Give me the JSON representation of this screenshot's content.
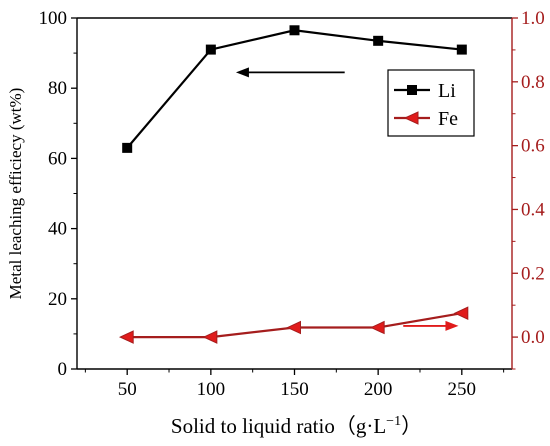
{
  "chart_data": {
    "type": "line",
    "x": [
      50,
      100,
      150,
      200,
      250
    ],
    "xlabel_main": "Solid to liquid ratio（g·L",
    "xlabel_sup": "−1",
    "xlabel_close": "）",
    "ylabel": "Metal leaching efficiecy (wt%)",
    "xlim": [
      20,
      280
    ],
    "xticks": [
      50,
      100,
      150,
      200,
      250
    ],
    "ylim": [
      0,
      100
    ],
    "yticks": [
      0,
      20,
      40,
      60,
      80,
      100
    ],
    "y2lim": [
      -0.1,
      1.0
    ],
    "y2ticks": [
      0.0,
      0.2,
      0.4,
      0.6,
      0.8,
      1.0
    ],
    "y2tick_labels": [
      "0.0",
      "0.2",
      "0.4",
      "0.6",
      "0.8",
      "1.0"
    ],
    "grid": false,
    "legend_position": "top-right",
    "series": [
      {
        "name": "Li",
        "axis": "left",
        "values": [
          63,
          91,
          96.5,
          93.5,
          91
        ],
        "color": "#000000",
        "marker": "square"
      },
      {
        "name": "Fe",
        "axis": "right",
        "values": [
          0.0,
          0.0,
          0.03,
          0.03,
          0.075
        ],
        "color": "#a51d1d",
        "marker": "triangle-left"
      }
    ],
    "arrows": [
      {
        "series": "Li",
        "direction": "left",
        "from": [
          180,
          84.5
        ],
        "to": [
          115,
          84.5
        ]
      },
      {
        "series": "Fe",
        "direction": "right",
        "from": [
          215,
          0.035
        ],
        "to": [
          248,
          0.035
        ]
      }
    ]
  }
}
